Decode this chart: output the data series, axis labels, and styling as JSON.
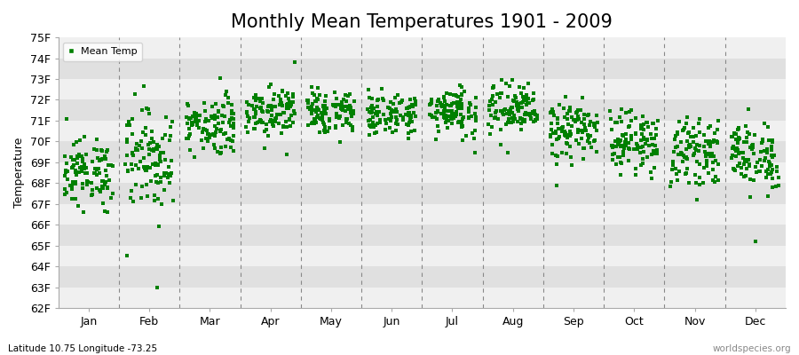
{
  "title": "Monthly Mean Temperatures 1901 - 2009",
  "ylabel": "Temperature",
  "ylim": [
    62,
    75
  ],
  "yticks": [
    62,
    63,
    64,
    65,
    66,
    67,
    68,
    69,
    70,
    71,
    72,
    73,
    74,
    75
  ],
  "months": [
    "Jan",
    "Feb",
    "Mar",
    "Apr",
    "May",
    "Jun",
    "Jul",
    "Aug",
    "Sep",
    "Oct",
    "Nov",
    "Dec"
  ],
  "marker_color": "#008000",
  "marker": "s",
  "marker_size": 2.5,
  "bg_color_light": "#f0f0f0",
  "bg_color_dark": "#e0e0e0",
  "legend_label": "Mean Temp",
  "footer_left": "Latitude 10.75 Longitude -73.25",
  "footer_right": "worldspecies.org",
  "title_fontsize": 15,
  "axis_fontsize": 9,
  "monthly_means": [
    68.5,
    69.2,
    70.8,
    71.5,
    71.4,
    71.3,
    71.5,
    71.5,
    70.5,
    70.0,
    69.5,
    69.3
  ],
  "monthly_stds": [
    0.8,
    1.2,
    0.7,
    0.6,
    0.55,
    0.5,
    0.6,
    0.65,
    0.7,
    0.7,
    0.75,
    0.8
  ],
  "n_years": 109,
  "dash_color": "#888888"
}
